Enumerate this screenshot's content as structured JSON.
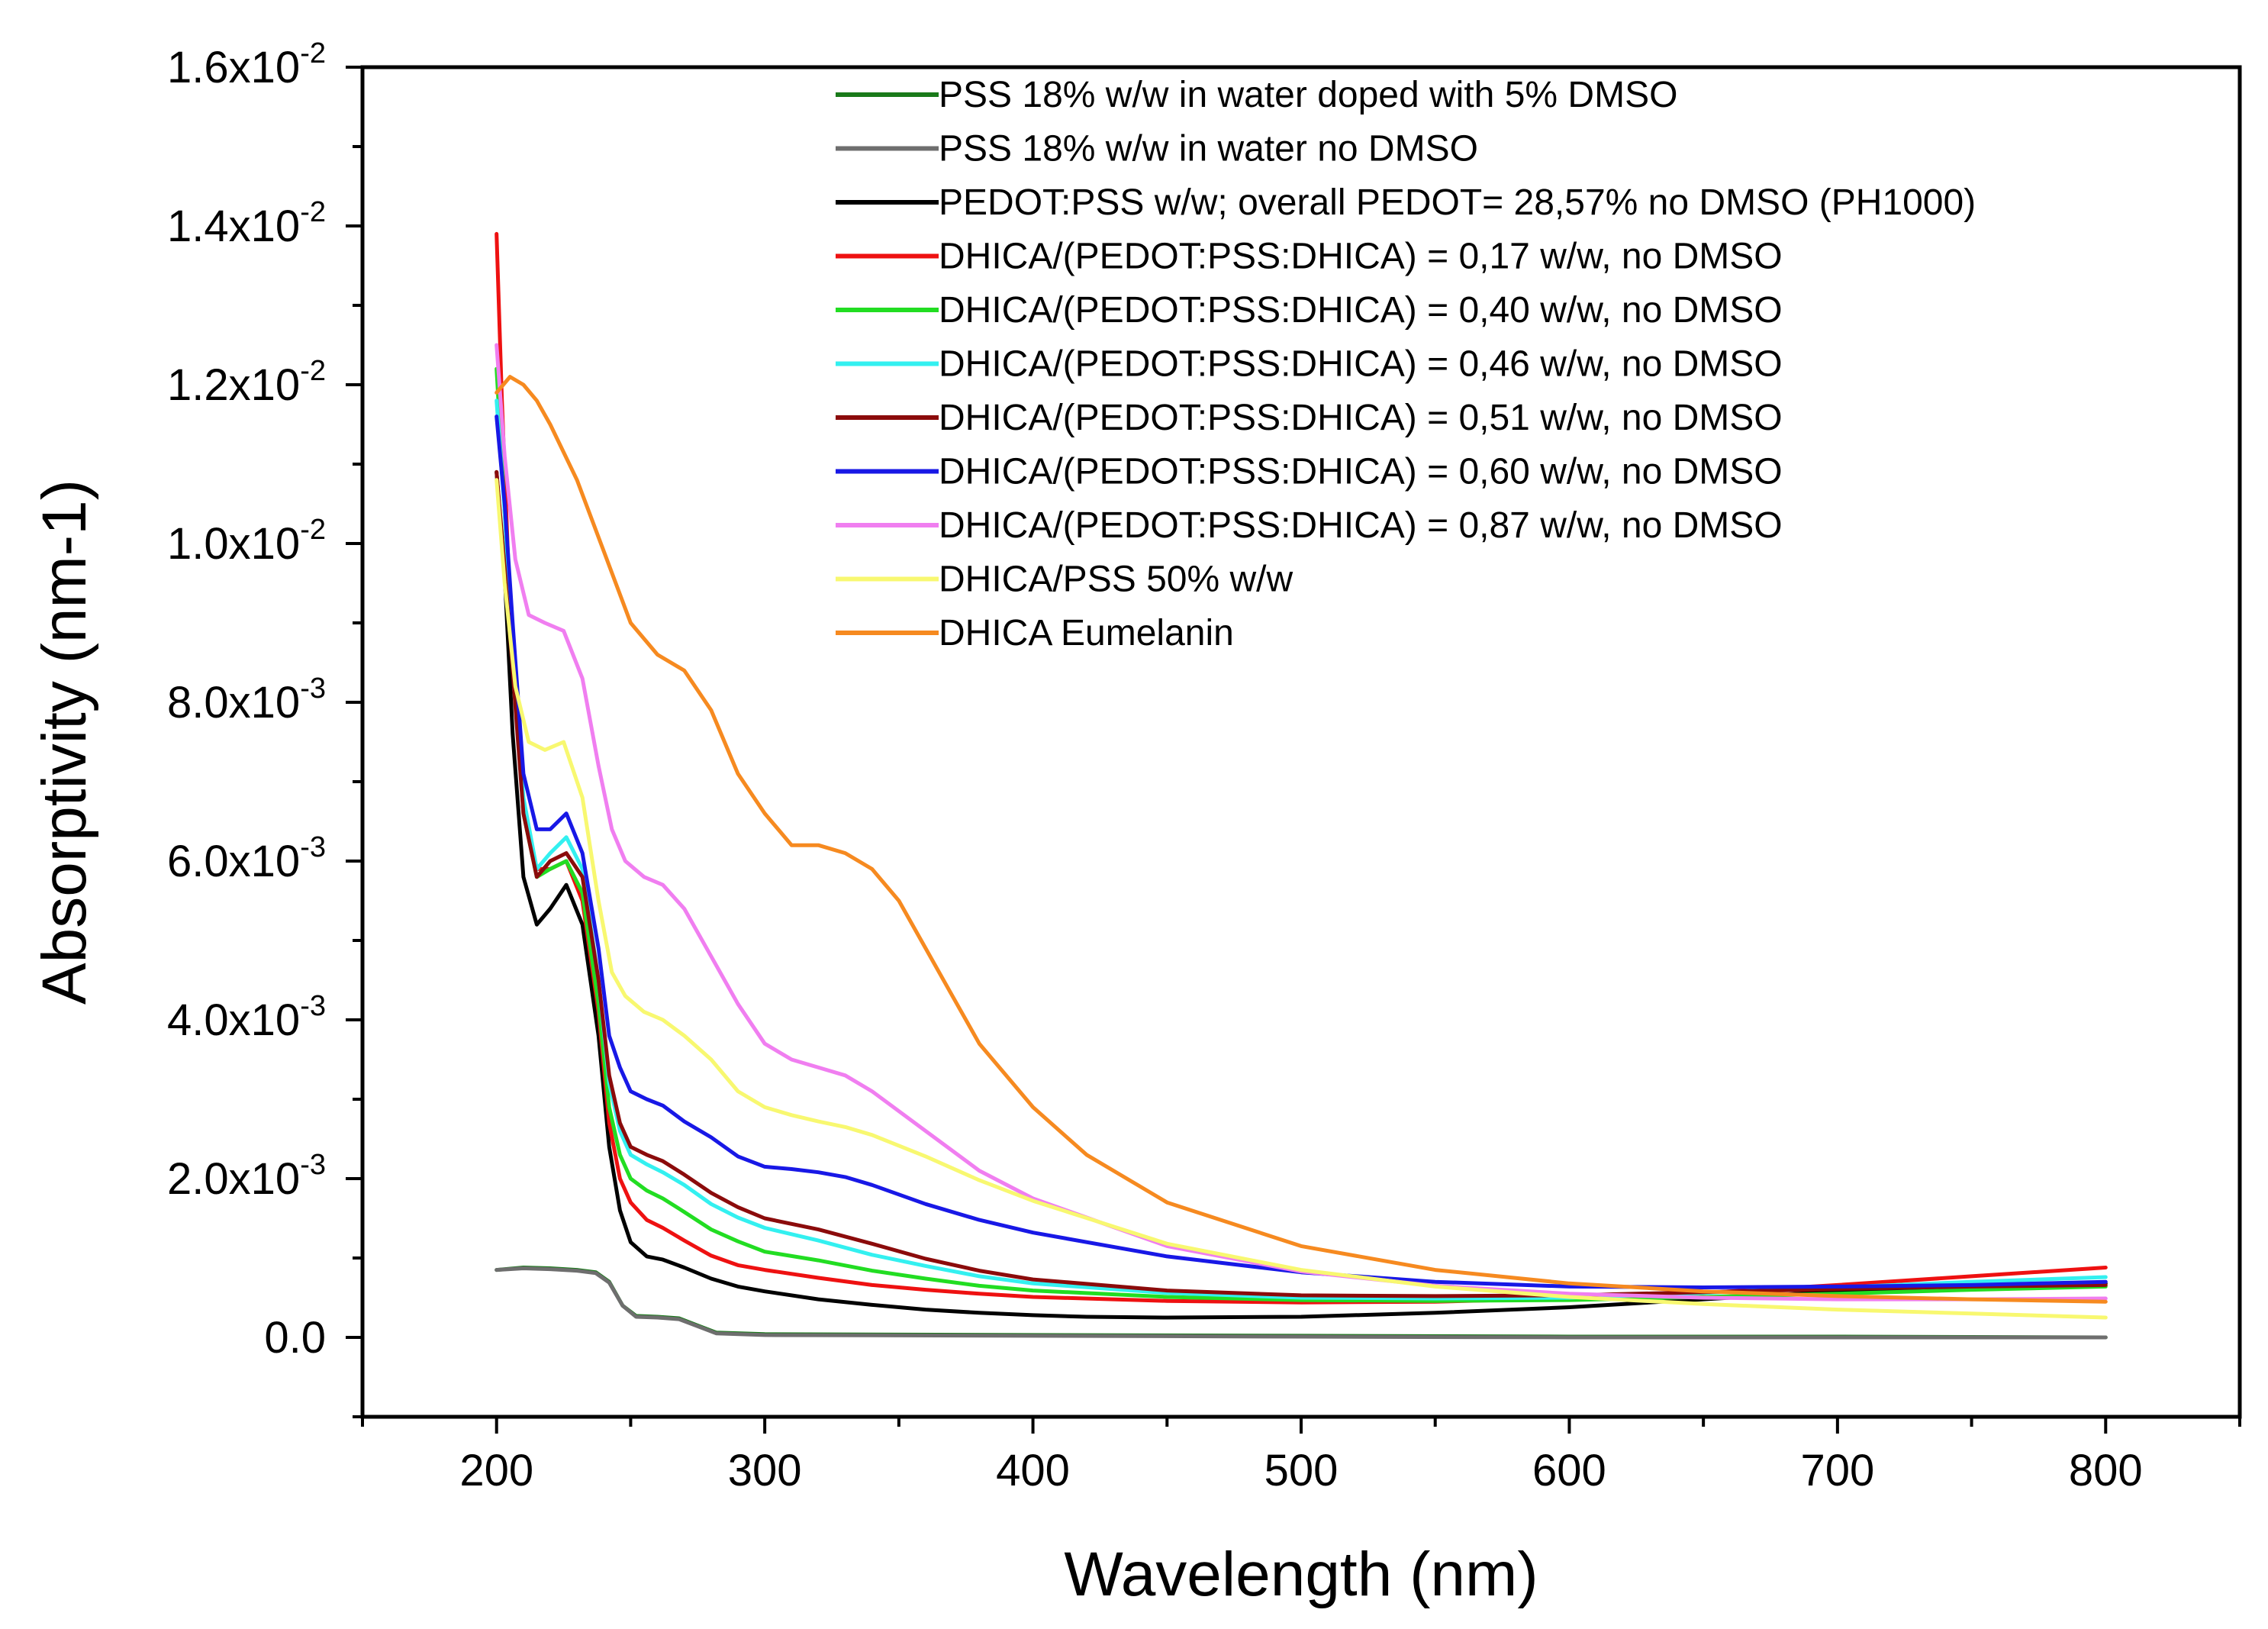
{
  "chart_data": {
    "type": "line",
    "title": "",
    "xlabel": "Wavelength (nm)",
    "ylabel": "Absorptivity (nm-1)",
    "xlim": [
      150,
      850
    ],
    "ylim": [
      -0.001,
      0.016
    ],
    "x_ticks": [
      {
        "value": 200,
        "label": "200"
      },
      {
        "value": 300,
        "label": "300"
      },
      {
        "value": 400,
        "label": "400"
      },
      {
        "value": 500,
        "label": "500"
      },
      {
        "value": 600,
        "label": "600"
      },
      {
        "value": 700,
        "label": "700"
      },
      {
        "value": 800,
        "label": "800"
      }
    ],
    "y_ticks": [
      {
        "value": 0,
        "mantissa": "0.0",
        "exp": ""
      },
      {
        "value": 0.002,
        "mantissa": "2.0x10",
        "exp": "-3"
      },
      {
        "value": 0.004,
        "mantissa": "4.0x10",
        "exp": "-3"
      },
      {
        "value": 0.006,
        "mantissa": "6.0x10",
        "exp": "-3"
      },
      {
        "value": 0.008,
        "mantissa": "8.0x10",
        "exp": "-3"
      },
      {
        "value": 0.01,
        "mantissa": "1.0x10",
        "exp": "-2"
      },
      {
        "value": 0.012,
        "mantissa": "1.2x10",
        "exp": "-2"
      },
      {
        "value": 0.014,
        "mantissa": "1.4x10",
        "exp": "-2"
      },
      {
        "value": 0.016,
        "mantissa": "1.6x10",
        "exp": "-2"
      }
    ],
    "legend_position": "top-right",
    "series": [
      {
        "name": "PSS 18% w/w in water doped with 5% DMSO",
        "color": "#1a7a1a",
        "x": [
          200,
          210,
          220,
          230,
          237,
          242,
          247,
          252,
          260,
          268,
          275,
          282,
          300,
          400,
          500,
          600,
          700,
          800
        ],
        "y": [
          0.00085,
          0.00088,
          0.00087,
          0.00085,
          0.00082,
          0.0007,
          0.0004,
          0.00027,
          0.00026,
          0.00024,
          0.00015,
          6e-05,
          4e-05,
          3e-05,
          2e-05,
          1e-05,
          1e-05,
          0.0
        ]
      },
      {
        "name": "PSS 18% w/w in water no DMSO",
        "color": "#6e6e6e",
        "x": [
          200,
          210,
          220,
          230,
          237,
          242,
          247,
          252,
          260,
          268,
          275,
          282,
          300,
          400,
          500,
          600,
          700,
          800
        ],
        "y": [
          0.00085,
          0.00087,
          0.00086,
          0.00084,
          0.00081,
          0.00069,
          0.0004,
          0.00026,
          0.00025,
          0.00023,
          0.00014,
          5e-05,
          3e-05,
          2e-05,
          1e-05,
          0.0,
          0.0,
          0.0
        ]
      },
      {
        "name": "PEDOT:PSS w/w; overall PEDOT= 28,57% no DMSO (PH1000)",
        "color": "#000000",
        "x": [
          200,
          203,
          206,
          210,
          215,
          220,
          226,
          232,
          238,
          242,
          246,
          250,
          256,
          262,
          270,
          280,
          290,
          300,
          320,
          340,
          360,
          380,
          400,
          420,
          450,
          500,
          550,
          600,
          650,
          700,
          750,
          800
        ],
        "y": [
          0.0109,
          0.0096,
          0.0076,
          0.0058,
          0.0052,
          0.0054,
          0.0057,
          0.0052,
          0.0038,
          0.0024,
          0.0016,
          0.0012,
          0.00102,
          0.00098,
          0.00088,
          0.00074,
          0.00064,
          0.00058,
          0.00048,
          0.00041,
          0.00035,
          0.00031,
          0.00028,
          0.00026,
          0.00025,
          0.00026,
          0.00031,
          0.00038,
          0.00048,
          0.00058,
          0.00064,
          0.00068
        ]
      },
      {
        "name": "DHICA/(PEDOT:PSS:DHICA) = 0,17 w/w, no DMSO",
        "color": "#ee1111",
        "x": [
          200,
          202,
          205,
          210,
          215,
          220,
          226,
          232,
          238,
          242,
          246,
          250,
          256,
          262,
          270,
          280,
          290,
          300,
          320,
          340,
          360,
          380,
          400,
          450,
          500,
          550,
          600,
          650,
          700,
          750,
          800
        ],
        "y": [
          0.0139,
          0.0118,
          0.0092,
          0.0066,
          0.0059,
          0.0059,
          0.006,
          0.0055,
          0.0041,
          0.0027,
          0.002,
          0.0017,
          0.00148,
          0.00138,
          0.00122,
          0.00103,
          0.00091,
          0.00085,
          0.00075,
          0.00066,
          0.0006,
          0.00055,
          0.00051,
          0.00046,
          0.00044,
          0.00045,
          0.00049,
          0.00056,
          0.00066,
          0.00077,
          0.00088
        ]
      },
      {
        "name": "DHICA/(PEDOT:PSS:DHICA) = 0,40 w/w, no DMSO",
        "color": "#22dd22",
        "x": [
          200,
          203,
          206,
          210,
          215,
          220,
          226,
          232,
          238,
          242,
          246,
          250,
          256,
          262,
          270,
          280,
          290,
          300,
          320,
          340,
          360,
          380,
          400,
          450,
          500,
          550,
          600,
          650,
          700,
          750,
          800
        ],
        "y": [
          0.0122,
          0.0104,
          0.0086,
          0.0066,
          0.0058,
          0.0059,
          0.006,
          0.0056,
          0.0042,
          0.0029,
          0.0023,
          0.002,
          0.00185,
          0.00175,
          0.00158,
          0.00136,
          0.00121,
          0.00108,
          0.00097,
          0.00084,
          0.00074,
          0.00065,
          0.00059,
          0.00051,
          0.00047,
          0.00046,
          0.00047,
          0.00051,
          0.00055,
          0.0006,
          0.00064
        ]
      },
      {
        "name": "DHICA/(PEDOT:PSS:DHICA) = 0,46 w/w, no DMSO",
        "color": "#33f0f0",
        "x": [
          200,
          203,
          206,
          210,
          215,
          220,
          226,
          232,
          238,
          242,
          246,
          250,
          256,
          262,
          270,
          280,
          290,
          300,
          320,
          340,
          360,
          380,
          400,
          450,
          500,
          550,
          600,
          650,
          700,
          750,
          800
        ],
        "y": [
          0.0118,
          0.0104,
          0.0087,
          0.0068,
          0.0059,
          0.0061,
          0.0063,
          0.0059,
          0.0045,
          0.0032,
          0.0026,
          0.0023,
          0.00218,
          0.00208,
          0.00192,
          0.00168,
          0.00151,
          0.00138,
          0.00122,
          0.00104,
          0.0009,
          0.00077,
          0.00068,
          0.00056,
          0.0005,
          0.00049,
          0.0005,
          0.00056,
          0.00063,
          0.0007,
          0.00076
        ]
      },
      {
        "name": "DHICA/(PEDOT:PSS:DHICA) = 0,51 w/w, no DMSO",
        "color": "#8b0b0b",
        "x": [
          200,
          203,
          206,
          210,
          215,
          220,
          226,
          232,
          238,
          242,
          246,
          250,
          256,
          262,
          270,
          280,
          290,
          300,
          320,
          340,
          360,
          380,
          400,
          450,
          500,
          550,
          600,
          650,
          700,
          750,
          800
        ],
        "y": [
          0.0109,
          0.0097,
          0.0084,
          0.0066,
          0.0058,
          0.006,
          0.0061,
          0.0058,
          0.0045,
          0.0033,
          0.0027,
          0.0024,
          0.0023,
          0.00222,
          0.00205,
          0.00182,
          0.00164,
          0.0015,
          0.00136,
          0.00118,
          0.00099,
          0.00084,
          0.00073,
          0.00059,
          0.00053,
          0.00052,
          0.00053,
          0.00057,
          0.00061,
          0.00064,
          0.00066
        ]
      },
      {
        "name": "DHICA/(PEDOT:PSS:DHICA) = 0,60 w/w, no DMSO",
        "color": "#1818e6",
        "x": [
          200,
          203,
          206,
          210,
          215,
          220,
          226,
          232,
          238,
          242,
          246,
          250,
          256,
          262,
          270,
          280,
          290,
          300,
          310,
          320,
          330,
          340,
          360,
          380,
          400,
          450,
          500,
          550,
          600,
          650,
          700,
          750,
          800
        ],
        "y": [
          0.0116,
          0.0105,
          0.009,
          0.0071,
          0.0064,
          0.0064,
          0.0066,
          0.0061,
          0.0049,
          0.0038,
          0.0034,
          0.0031,
          0.003,
          0.00292,
          0.00272,
          0.00252,
          0.00228,
          0.00215,
          0.00212,
          0.00208,
          0.00202,
          0.00192,
          0.00168,
          0.00148,
          0.00132,
          0.00102,
          0.00082,
          0.0007,
          0.00064,
          0.00063,
          0.00064,
          0.00066,
          0.0007
        ]
      },
      {
        "name": "DHICA/(PEDOT:PSS:DHICA) = 0,87 w/w, no DMSO",
        "color": "#f07ef0",
        "x": [
          200,
          203,
          207,
          212,
          218,
          225,
          232,
          238,
          243,
          248,
          255,
          262,
          270,
          280,
          290,
          300,
          310,
          320,
          330,
          340,
          360,
          380,
          400,
          450,
          500,
          550,
          600,
          650,
          700,
          750,
          800
        ],
        "y": [
          0.0125,
          0.0111,
          0.0098,
          0.0091,
          0.009,
          0.0089,
          0.0083,
          0.0072,
          0.0064,
          0.006,
          0.0058,
          0.0057,
          0.0054,
          0.0048,
          0.0042,
          0.0037,
          0.0035,
          0.0034,
          0.0033,
          0.0031,
          0.0026,
          0.0021,
          0.00175,
          0.00115,
          0.00083,
          0.00065,
          0.00055,
          0.0005,
          0.00048,
          0.00048,
          0.00049
        ]
      },
      {
        "name": "DHICA/PSS 50% w/w",
        "color": "#f8f870",
        "x": [
          200,
          203,
          207,
          212,
          218,
          225,
          232,
          238,
          243,
          248,
          255,
          262,
          270,
          280,
          290,
          300,
          310,
          320,
          330,
          340,
          360,
          380,
          400,
          450,
          500,
          550,
          600,
          650,
          700,
          750,
          800
        ],
        "y": [
          0.0108,
          0.0095,
          0.0082,
          0.0075,
          0.0074,
          0.0075,
          0.0068,
          0.0055,
          0.0046,
          0.0043,
          0.0041,
          0.004,
          0.0038,
          0.0035,
          0.0031,
          0.0029,
          0.0028,
          0.00272,
          0.00265,
          0.00255,
          0.00228,
          0.00198,
          0.00172,
          0.00118,
          0.00085,
          0.00064,
          0.00051,
          0.00042,
          0.00035,
          0.0003,
          0.00025
        ]
      },
      {
        "name": "DHICA Eumelanin",
        "color": "#f68a20",
        "x": [
          200,
          205,
          210,
          215,
          220,
          230,
          240,
          250,
          260,
          270,
          280,
          290,
          300,
          310,
          320,
          330,
          340,
          350,
          360,
          370,
          380,
          400,
          420,
          450,
          500,
          550,
          600,
          650,
          700,
          750,
          800
        ],
        "y": [
          0.0119,
          0.0121,
          0.012,
          0.0118,
          0.0115,
          0.0108,
          0.0099,
          0.009,
          0.0086,
          0.0084,
          0.0079,
          0.0071,
          0.0066,
          0.0062,
          0.0062,
          0.0061,
          0.0059,
          0.0055,
          0.0049,
          0.0043,
          0.0037,
          0.0029,
          0.0023,
          0.0017,
          0.00115,
          0.00085,
          0.00068,
          0.00058,
          0.00052,
          0.00048,
          0.00045
        ]
      }
    ]
  }
}
